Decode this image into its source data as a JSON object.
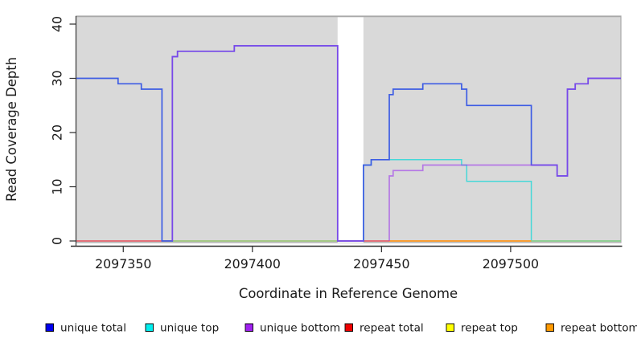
{
  "chart_data": {
    "type": "line",
    "subtype": "step-coverage-plot",
    "title": "",
    "xlabel": "Coordinate in Reference Genome",
    "ylabel": "Read Coverage Depth",
    "xlim": [
      2097331.7,
      2097542.7
    ],
    "ylim": [
      0,
      41.5
    ],
    "x_ticks": [
      2097350,
      2097400,
      2097450,
      2097500
    ],
    "y_ticks": [
      0,
      10,
      20,
      30,
      40
    ],
    "grid": false,
    "panel_bg": "#d9d9d9",
    "panel_border_color": "#aaaaaa",
    "masked_region": {
      "x0": 2097433,
      "x1": 2097443,
      "color": "#ffffff"
    },
    "legend_position": "bottom",
    "legend": [
      {
        "label": "unique total",
        "color": "#0000ee"
      },
      {
        "label": "unique top",
        "color": "#00eeee"
      },
      {
        "label": "unique bottom",
        "color": "#a020f0"
      },
      {
        "label": "repeat total",
        "color": "#ee0000"
      },
      {
        "label": "repeat top",
        "color": "#ffff00"
      },
      {
        "label": "repeat bottom",
        "color": "#ff9900"
      }
    ],
    "series": [
      {
        "name": "repeat top",
        "stroke": "#ffff00",
        "width": 1.2,
        "segments": [
          [
            [
              2097331.7,
              0
            ],
            [
              2097542.7,
              0
            ]
          ]
        ]
      },
      {
        "name": "repeat bottom",
        "stroke": "#ff9c20",
        "width": 1.2,
        "segments": [
          [
            [
              2097331.7,
              0
            ],
            [
              2097542.7,
              0
            ]
          ]
        ]
      },
      {
        "name": "repeat total",
        "stroke": "#dd2233",
        "width": 1.2,
        "segments": [
          [
            [
              2097331.7,
              0
            ],
            [
              2097542.7,
              0
            ]
          ]
        ]
      },
      {
        "name": "unique top",
        "stroke": "#45d8d8",
        "width": 1.5,
        "segments": [
          [
            [
              2097443,
              0
            ],
            [
              2097443,
              14
            ],
            [
              2097446,
              15
            ],
            [
              2097481,
              14
            ],
            [
              2097483,
              11
            ],
            [
              2097508,
              0
            ],
            [
              2097542.7,
              0
            ]
          ]
        ]
      },
      {
        "name": "baseline-overlays",
        "role": "observed 0-depth line colors (overlap blends)",
        "width": 1.5,
        "segments": [],
        "colored_spans": [
          {
            "x0": 2097331.7,
            "x1": 2097365,
            "color": "#e0607e"
          },
          {
            "x0": 2097369,
            "x1": 2097433,
            "color": "#8fd38f"
          },
          {
            "x0": 2097443,
            "x1": 2097453,
            "color": "#e0607e"
          },
          {
            "x0": 2097453,
            "x1": 2097508,
            "color": "#ff9c20"
          },
          {
            "x0": 2097508,
            "x1": 2097542.7,
            "color": "#8fd38f"
          }
        ]
      },
      {
        "name": "unique total",
        "stroke": "#3d5ce4",
        "width": 1.7,
        "segments": [
          [
            [
              2097331.7,
              30
            ],
            [
              2097348,
              29
            ],
            [
              2097357,
              28
            ],
            [
              2097365,
              0
            ],
            [
              2097369,
              34
            ],
            [
              2097371,
              35
            ],
            [
              2097393,
              36
            ],
            [
              2097433,
              0
            ],
            [
              2097443,
              14
            ],
            [
              2097446,
              15
            ],
            [
              2097453,
              27
            ],
            [
              2097454.5,
              28
            ],
            [
              2097466,
              29
            ],
            [
              2097481,
              28
            ],
            [
              2097483,
              25
            ],
            [
              2097508,
              14
            ],
            [
              2097518,
              12
            ],
            [
              2097522,
              28
            ],
            [
              2097525,
              29
            ],
            [
              2097530,
              30
            ],
            [
              2097542.7,
              30
            ]
          ]
        ]
      },
      {
        "name": "unique bottom",
        "stroke": "rgba(158,60,235,0.62)",
        "width": 1.7,
        "segments": [
          [
            [
              2097369,
              0
            ],
            [
              2097369,
              34
            ],
            [
              2097371,
              35
            ],
            [
              2097393,
              36
            ],
            [
              2097433,
              0
            ],
            [
              2097443,
              0
            ]
          ],
          [
            [
              2097453,
              0
            ],
            [
              2097453,
              12
            ],
            [
              2097454.5,
              13
            ],
            [
              2097466,
              14
            ],
            [
              2097518,
              12
            ],
            [
              2097522,
              28
            ],
            [
              2097525,
              29
            ],
            [
              2097530,
              30
            ],
            [
              2097542.7,
              30
            ]
          ]
        ]
      }
    ]
  }
}
